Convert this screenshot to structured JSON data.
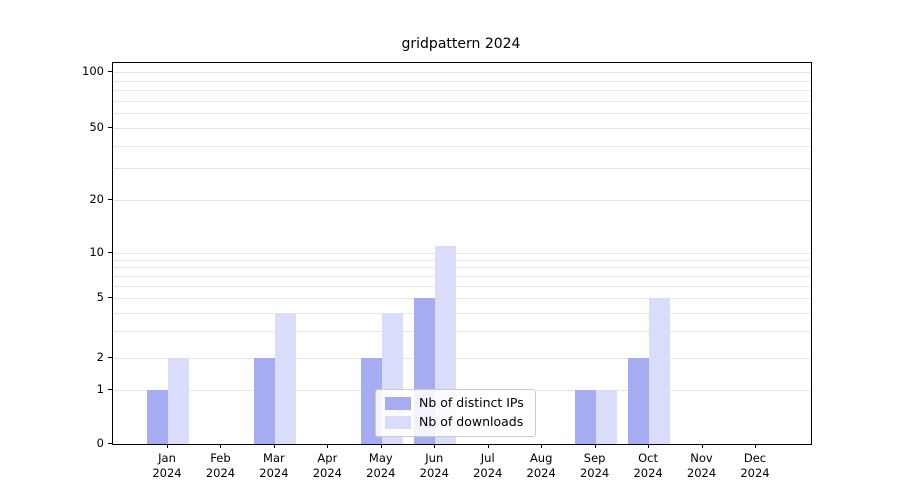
{
  "chart_data": {
    "type": "bar",
    "title": "gridpattern 2024",
    "categories": [
      "Jan",
      "Feb",
      "Mar",
      "Apr",
      "May",
      "Jun",
      "Jul",
      "Aug",
      "Sep",
      "Oct",
      "Nov",
      "Dec"
    ],
    "year_label": "2024",
    "series": [
      {
        "name": "Nb of distinct IPs",
        "color": "#a5acf2",
        "values": [
          1,
          0,
          2,
          0,
          2,
          5,
          0,
          0,
          1,
          2,
          0,
          0
        ]
      },
      {
        "name": "Nb of downloads",
        "color": "#d9ddfa",
        "values": [
          2,
          0,
          4,
          0,
          4,
          11,
          0,
          0,
          1,
          5,
          0,
          0
        ]
      }
    ],
    "ylabel": "",
    "xlabel": "",
    "yticks": [
      0,
      1,
      2,
      5,
      10,
      20,
      50,
      100
    ],
    "minor_gridlines": [
      3,
      4,
      6,
      7,
      8,
      9,
      30,
      40,
      60,
      70,
      80,
      90
    ],
    "scale": "asinh-log",
    "ylim": [
      0,
      113
    ],
    "grid": "horizontal",
    "legend_position": "lower center"
  }
}
